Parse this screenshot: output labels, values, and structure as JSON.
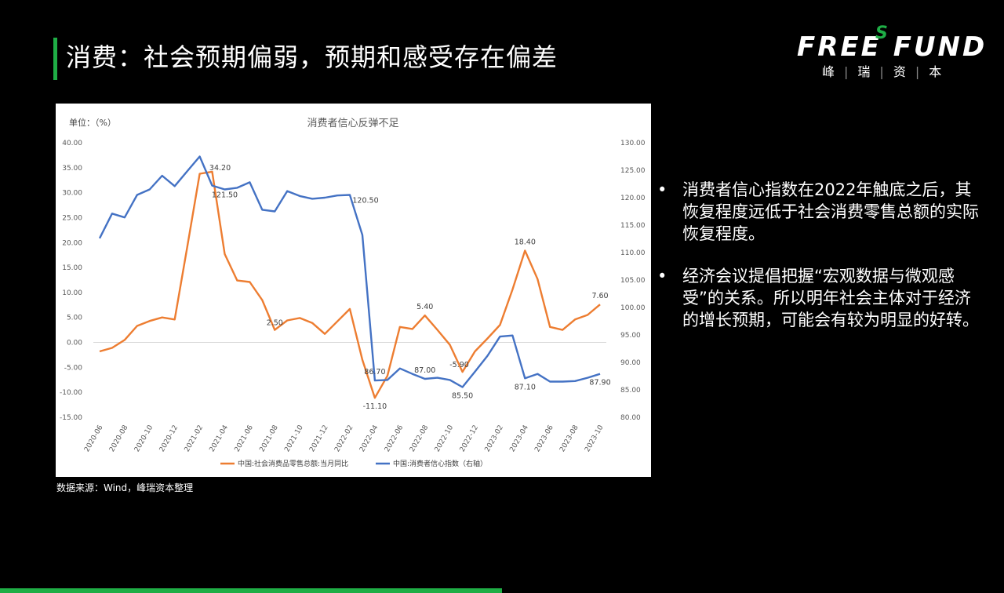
{
  "title": "消费：社会预期偏弱，预期和感受存在偏差",
  "logo": {
    "main": "FREE FUND",
    "superscript": "S",
    "sub": [
      "峰",
      "瑞",
      "资",
      "本"
    ],
    "brand_color": "#1fae46"
  },
  "source": "数据来源：Wind，峰瑞资本整理",
  "bullets": [
    "消费者信心指数在2022年触底之后，其恢复程度远低于社会消费零售总额的实际恢复程度。",
    "经济会议提倡把握“宏观数据与微观感受”的关系。所以明年社会主体对于经济的增长预期，可能会有较为明显的好转。"
  ],
  "bullet_symbol": "•",
  "chart_data": {
    "type": "line",
    "title": "消费者信心反弹不足",
    "unit_label": "单位：（%）",
    "x": [
      "2020-06",
      "2020-07",
      "2020-08",
      "2020-09",
      "2020-10",
      "2020-11",
      "2020-12",
      "2021-01",
      "2021-02",
      "2021-03",
      "2021-04",
      "2021-05",
      "2021-06",
      "2021-07",
      "2021-08",
      "2021-09",
      "2021-10",
      "2021-11",
      "2021-12",
      "2022-01",
      "2022-02",
      "2022-03",
      "2022-04",
      "2022-05",
      "2022-06",
      "2022-07",
      "2022-08",
      "2022-09",
      "2022-10",
      "2022-11",
      "2022-12",
      "2023-01",
      "2023-02",
      "2023-03",
      "2023-04",
      "2023-05",
      "2023-06",
      "2023-07",
      "2023-08",
      "2023-09",
      "2023-10"
    ],
    "x_tick_labels": [
      "2020-06",
      "2020-08",
      "2020-10",
      "2020-12",
      "2021-02",
      "2021-04",
      "2021-06",
      "2021-08",
      "2021-10",
      "2021-12",
      "2022-02",
      "2022-04",
      "2022-06",
      "2022-08",
      "2022-10",
      "2022-12",
      "2023-02",
      "2023-04",
      "2023-06",
      "2023-08",
      "2023-10"
    ],
    "y_left": {
      "ylim": [
        -15,
        40
      ],
      "ticks": [
        "-15.00",
        "-10.00",
        "-5.00",
        "0.00",
        "5.00",
        "10.00",
        "15.00",
        "20.00",
        "25.00",
        "30.00",
        "35.00",
        "40.00"
      ]
    },
    "y_right": {
      "ylim": [
        80,
        130
      ],
      "ticks": [
        "80.00",
        "85.00",
        "90.00",
        "95.00",
        "100.00",
        "105.00",
        "110.00",
        "115.00",
        "120.00",
        "125.00",
        "130.00"
      ]
    },
    "series": [
      {
        "name": "中国:社会消费品零售总额:当月同比",
        "axis": "left",
        "color": "#ed7d31",
        "values": [
          -1.8,
          -1.1,
          0.5,
          3.3,
          4.3,
          5.0,
          4.6,
          19.0,
          33.8,
          34.2,
          17.7,
          12.4,
          12.1,
          8.5,
          2.5,
          4.4,
          4.9,
          3.9,
          1.7,
          4.2,
          6.7,
          -3.5,
          -11.1,
          -6.7,
          3.1,
          2.7,
          5.4,
          2.5,
          -0.5,
          -5.9,
          -1.8,
          0.8,
          3.5,
          10.6,
          18.4,
          12.7,
          3.1,
          2.5,
          4.6,
          5.5,
          7.6
        ],
        "labels": [
          {
            "index": 9,
            "text": "34.20"
          },
          {
            "index": 14,
            "text": "2.50"
          },
          {
            "index": 22,
            "text": "-11.10"
          },
          {
            "index": 26,
            "text": "5.40"
          },
          {
            "index": 29,
            "text": "-5.90"
          },
          {
            "index": 34,
            "text": "18.40"
          },
          {
            "index": 40,
            "text": "7.60"
          }
        ]
      },
      {
        "name": "中国:消费者信心指数（右轴）",
        "axis": "right",
        "color": "#4472c4",
        "values": [
          112.6,
          117.1,
          116.4,
          120.5,
          121.5,
          124.0,
          122.1,
          124.8,
          127.5,
          122.2,
          121.5,
          121.8,
          122.8,
          117.8,
          117.5,
          121.2,
          120.3,
          119.8,
          120.0,
          120.4,
          120.5,
          113.2,
          86.7,
          86.8,
          88.9,
          87.9,
          87.0,
          87.2,
          86.8,
          85.5,
          88.3,
          91.2,
          94.7,
          94.9,
          87.1,
          87.9,
          86.5,
          86.5,
          86.6,
          87.2,
          87.9
        ],
        "labels": [
          {
            "index": 10,
            "text": "121.50"
          },
          {
            "index": 20,
            "text": "120.50"
          },
          {
            "index": 22,
            "text": "86.70"
          },
          {
            "index": 26,
            "text": "87.00"
          },
          {
            "index": 29,
            "text": "85.50"
          },
          {
            "index": 34,
            "text": "87.10"
          },
          {
            "index": 40,
            "text": "87.90"
          }
        ]
      }
    ],
    "legend_placement": "bottom",
    "grid": false
  }
}
